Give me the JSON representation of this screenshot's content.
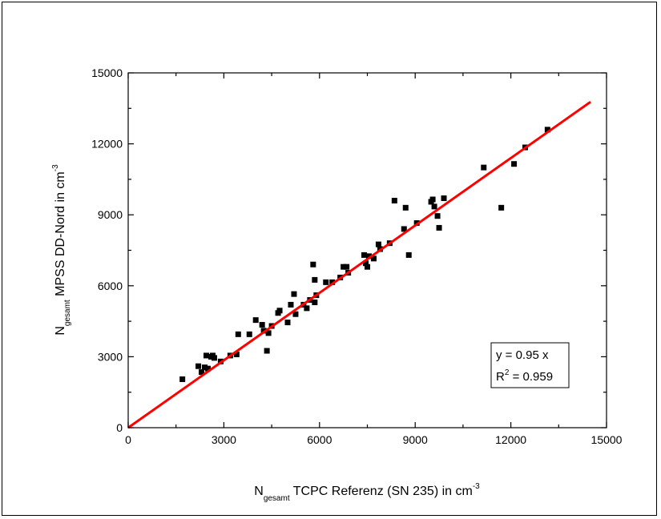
{
  "chart_data": {
    "type": "scatter",
    "xlabel": {
      "main": "N",
      "sub": "gesamt",
      "rest": " TCPC Referenz (SN 235) in cm",
      "sup": "-3"
    },
    "ylabel": {
      "main": "N",
      "sub": "gesamt",
      "rest": " MPSS DD-Nord in cm",
      "sup": "-3"
    },
    "xlim": [
      0,
      15000
    ],
    "ylim": [
      0,
      15000
    ],
    "xticks": [
      "0",
      "3000",
      "6000",
      "9000",
      "12000",
      "15000"
    ],
    "yticks": [
      "0",
      "3000",
      "6000",
      "9000",
      "12000",
      "15000"
    ],
    "grid": false,
    "fit": {
      "slope": 0.95,
      "x_range": [
        0,
        14500
      ],
      "color": "#ff0000"
    },
    "marker_color": "#000000",
    "annotation": {
      "line1": "y = 0.95 x",
      "line2_main": "R",
      "line2_sup": "2",
      "line2_rest": " = 0.959"
    },
    "points": [
      [
        1700,
        2050
      ],
      [
        2200,
        2600
      ],
      [
        2300,
        2350
      ],
      [
        2400,
        2550
      ],
      [
        2450,
        3050
      ],
      [
        2500,
        2500
      ],
      [
        2600,
        3000
      ],
      [
        2650,
        3050
      ],
      [
        2700,
        2950
      ],
      [
        2900,
        2800
      ],
      [
        3200,
        3050
      ],
      [
        3400,
        3100
      ],
      [
        3450,
        3950
      ],
      [
        3800,
        3950
      ],
      [
        4000,
        4550
      ],
      [
        4200,
        4350
      ],
      [
        4250,
        4100
      ],
      [
        4350,
        3250
      ],
      [
        4400,
        4000
      ],
      [
        4500,
        4300
      ],
      [
        4700,
        4850
      ],
      [
        4750,
        4950
      ],
      [
        5000,
        4450
      ],
      [
        5100,
        5200
      ],
      [
        5200,
        5650
      ],
      [
        5250,
        4800
      ],
      [
        5500,
        5200
      ],
      [
        5600,
        5050
      ],
      [
        5700,
        5400
      ],
      [
        5800,
        6900
      ],
      [
        5850,
        5300
      ],
      [
        5850,
        6250
      ],
      [
        5900,
        5600
      ],
      [
        6200,
        6150
      ],
      [
        6400,
        6150
      ],
      [
        6650,
        6350
      ],
      [
        6750,
        6800
      ],
      [
        6850,
        6800
      ],
      [
        6900,
        6550
      ],
      [
        7400,
        7300
      ],
      [
        7450,
        6950
      ],
      [
        7500,
        6800
      ],
      [
        7550,
        7250
      ],
      [
        7700,
        7150
      ],
      [
        7850,
        7750
      ],
      [
        7900,
        7550
      ],
      [
        8200,
        7800
      ],
      [
        8350,
        9600
      ],
      [
        8650,
        8400
      ],
      [
        8700,
        9300
      ],
      [
        8800,
        7300
      ],
      [
        9050,
        8650
      ],
      [
        9500,
        9550
      ],
      [
        9550,
        9650
      ],
      [
        9600,
        9350
      ],
      [
        9700,
        8950
      ],
      [
        9750,
        8450
      ],
      [
        9900,
        9700
      ],
      [
        11150,
        11000
      ],
      [
        11700,
        9300
      ],
      [
        12100,
        11150
      ],
      [
        12450,
        11850
      ],
      [
        13150,
        12600
      ]
    ]
  }
}
